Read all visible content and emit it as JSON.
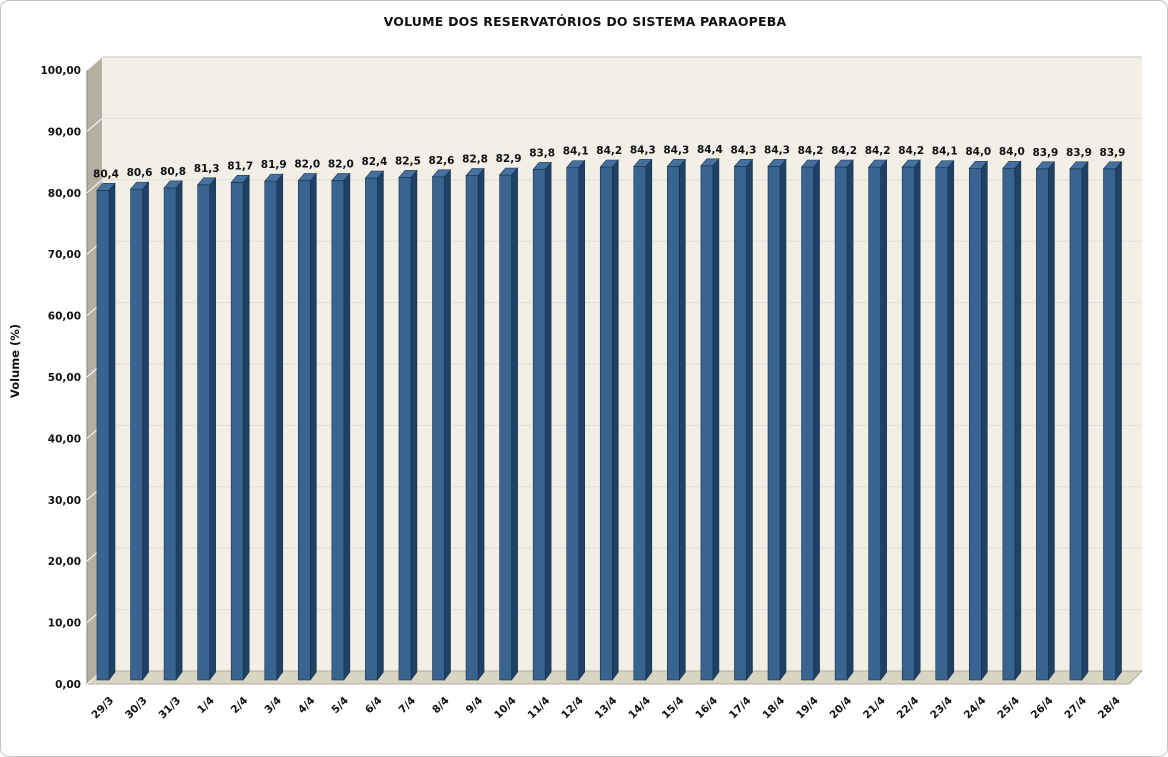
{
  "chart_data": {
    "type": "bar",
    "style": "3d-column",
    "title": "VOLUME DOS RESERVATÓRIOS DO SISTEMA PARAOPEBA",
    "xlabel": "",
    "ylabel": "Volume (%)",
    "ylim": [
      0,
      100
    ],
    "grid": true,
    "legend": "none",
    "decimal_separator": ",",
    "categories": [
      "29/3",
      "30/3",
      "31/3",
      "1/4",
      "2/4",
      "3/4",
      "4/4",
      "5/4",
      "6/4",
      "7/4",
      "8/4",
      "9/4",
      "10/4",
      "11/4",
      "12/4",
      "13/4",
      "14/4",
      "15/4",
      "16/4",
      "17/4",
      "18/4",
      "19/4",
      "20/4",
      "21/4",
      "22/4",
      "23/4",
      "24/4",
      "25/4",
      "26/4",
      "27/4",
      "28/4"
    ],
    "values": [
      80.4,
      80.6,
      80.8,
      81.3,
      81.7,
      81.9,
      82.0,
      82.0,
      82.4,
      82.5,
      82.6,
      82.8,
      82.9,
      83.8,
      84.1,
      84.2,
      84.3,
      84.3,
      84.4,
      84.3,
      84.3,
      84.2,
      84.2,
      84.2,
      84.2,
      84.1,
      84.0,
      84.0,
      83.9,
      83.9,
      83.9
    ],
    "value_labels": [
      "80,4",
      "80,6",
      "80,8",
      "81,3",
      "81,7",
      "81,9",
      "82,0",
      "82,0",
      "82,4",
      "82,5",
      "82,6",
      "82,8",
      "82,9",
      "83,8",
      "84,1",
      "84,2",
      "84,3",
      "84,3",
      "84,4",
      "84,3",
      "84,3",
      "84,2",
      "84,2",
      "84,2",
      "84,2",
      "84,1",
      "84,0",
      "84,0",
      "83,9",
      "83,9",
      "83,9"
    ],
    "ytick_values": [
      0,
      10,
      20,
      30,
      40,
      50,
      60,
      70,
      80,
      90,
      100
    ],
    "ytick_labels": [
      "0,00",
      "10,00",
      "20,00",
      "30,00",
      "40,00",
      "50,00",
      "60,00",
      "70,00",
      "80,00",
      "90,00",
      "100,00"
    ],
    "colors": {
      "bar_front": "#38648f",
      "bar_top": "#46719e",
      "bar_side": "#1f4165",
      "bar_edge": "#16304e",
      "plot_bg": "#f2efe7",
      "wall": "#b3afa3",
      "wall_edge": "#87837a",
      "wall_tick": "#f7f5ef",
      "floor": "#d9d5c3",
      "floor_edge": "#b0ac9d",
      "gridline": "#dfdeda",
      "top_gridline": "#c6c6c3",
      "text": "#111111"
    }
  }
}
